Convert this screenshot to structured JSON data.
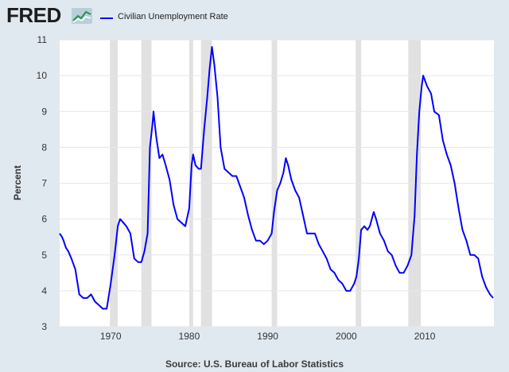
{
  "header": {
    "logo_text": "FRED",
    "legend_label": "Civilian Unemployment Rate"
  },
  "source": "Source: U.S. Bureau of Labor Statistics",
  "colors": {
    "line": "#0000ff",
    "plot_bg": "#ffffff",
    "page_bg": "#e1e9f0",
    "recession": "#e1e1e1"
  },
  "chart_data": {
    "type": "line",
    "title": "",
    "xlabel": "",
    "ylabel": "Percent",
    "xlim": [
      1963.5,
      2018.8
    ],
    "ylim": [
      3,
      11
    ],
    "yticks": [
      3,
      4,
      5,
      6,
      7,
      8,
      9,
      10,
      11
    ],
    "xticks": [
      1970,
      1980,
      1990,
      2000,
      2010
    ],
    "grid": "horizontal",
    "legend": "top-left",
    "recessions": [
      [
        1969.9,
        1970.9
      ],
      [
        1973.9,
        1975.2
      ],
      [
        1980.0,
        1980.5
      ],
      [
        1981.5,
        1982.9
      ],
      [
        1990.5,
        1991.2
      ],
      [
        2001.2,
        2001.9
      ],
      [
        2007.9,
        2009.5
      ]
    ],
    "series": [
      {
        "name": "Civilian Unemployment Rate",
        "x": [
          1963.5,
          1963.8,
          1964.0,
          1964.3,
          1964.6,
          1965.0,
          1965.5,
          1966.0,
          1966.5,
          1967.0,
          1967.5,
          1968.0,
          1968.5,
          1969.0,
          1969.5,
          1970.0,
          1970.5,
          1970.9,
          1971.2,
          1971.6,
          1972.0,
          1972.5,
          1973.0,
          1973.5,
          1973.9,
          1974.3,
          1974.7,
          1975.0,
          1975.3,
          1975.45,
          1975.8,
          1976.2,
          1976.6,
          1977.0,
          1977.5,
          1978.0,
          1978.5,
          1979.0,
          1979.5,
          1980.0,
          1980.3,
          1980.5,
          1980.8,
          1981.2,
          1981.5,
          1981.9,
          1982.3,
          1982.6,
          1982.9,
          1983.2,
          1983.6,
          1984.0,
          1984.5,
          1985.0,
          1985.5,
          1986.0,
          1986.5,
          1987.0,
          1987.5,
          1988.0,
          1988.5,
          1989.0,
          1989.5,
          1990.0,
          1990.5,
          1990.8,
          1991.2,
          1991.6,
          1992.0,
          1992.3,
          1992.6,
          1993.0,
          1993.5,
          1994.0,
          1994.5,
          1995.0,
          1995.5,
          1996.0,
          1996.5,
          1997.0,
          1997.5,
          1998.0,
          1998.5,
          1999.0,
          1999.5,
          2000.0,
          2000.5,
          2001.0,
          2001.3,
          2001.6,
          2001.9,
          2002.3,
          2002.7,
          2003.0,
          2003.5,
          2003.8,
          2004.3,
          2004.8,
          2005.3,
          2005.8,
          2006.3,
          2006.8,
          2007.3,
          2007.8,
          2008.3,
          2008.7,
          2009.0,
          2009.3,
          2009.6,
          2009.8,
          2010.3,
          2010.8,
          2011.2,
          2011.8,
          2012.3,
          2012.8,
          2013.3,
          2013.8,
          2014.3,
          2014.8,
          2015.3,
          2015.8,
          2016.3,
          2016.8,
          2017.3,
          2017.8,
          2018.3,
          2018.7
        ],
        "y": [
          5.6,
          5.5,
          5.4,
          5.2,
          5.1,
          4.9,
          4.6,
          3.9,
          3.8,
          3.8,
          3.9,
          3.7,
          3.6,
          3.5,
          3.5,
          4.2,
          5.0,
          5.8,
          6.0,
          5.9,
          5.8,
          5.6,
          4.9,
          4.8,
          4.8,
          5.1,
          5.6,
          8.0,
          8.6,
          9.0,
          8.3,
          7.7,
          7.8,
          7.5,
          7.1,
          6.4,
          6.0,
          5.9,
          5.8,
          6.3,
          7.5,
          7.8,
          7.5,
          7.4,
          7.4,
          8.5,
          9.4,
          10.2,
          10.8,
          10.3,
          9.4,
          8.0,
          7.4,
          7.3,
          7.2,
          7.2,
          6.9,
          6.6,
          6.1,
          5.7,
          5.4,
          5.4,
          5.3,
          5.4,
          5.6,
          6.2,
          6.8,
          7.0,
          7.3,
          7.7,
          7.5,
          7.1,
          6.8,
          6.6,
          6.1,
          5.6,
          5.6,
          5.6,
          5.3,
          5.1,
          4.9,
          4.6,
          4.5,
          4.3,
          4.2,
          4.0,
          4.0,
          4.2,
          4.4,
          4.9,
          5.7,
          5.8,
          5.7,
          5.8,
          6.2,
          6.0,
          5.6,
          5.4,
          5.1,
          5.0,
          4.7,
          4.5,
          4.5,
          4.7,
          5.0,
          6.1,
          7.8,
          9.0,
          9.7,
          10.0,
          9.7,
          9.5,
          9.0,
          8.9,
          8.2,
          7.8,
          7.5,
          7.0,
          6.3,
          5.7,
          5.4,
          5.0,
          5.0,
          4.9,
          4.4,
          4.1,
          3.9,
          3.8
        ]
      }
    ]
  }
}
